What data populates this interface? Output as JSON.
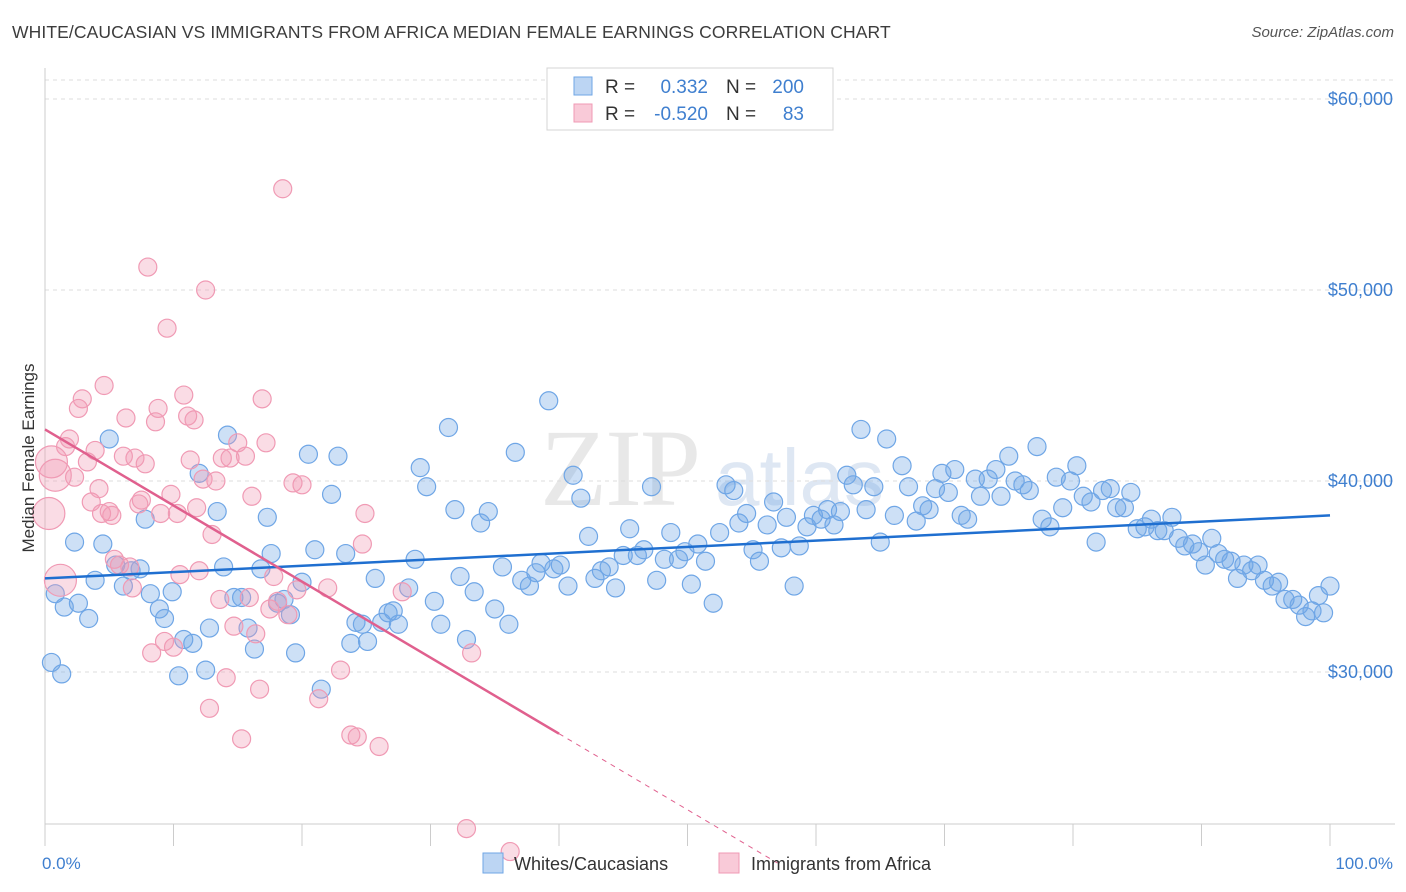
{
  "title": "WHITE/CAUCASIAN VS IMMIGRANTS FROM AFRICA MEDIAN FEMALE EARNINGS CORRELATION CHART",
  "source": "Source: ZipAtlas.com",
  "watermark": "ZIPatlas",
  "colors": {
    "blue": "#6fa6e6",
    "blue_line": "#1f6fd0",
    "pink": "#f09ab4",
    "pink_line": "#e0608e",
    "axis_text": "#3f7fcf",
    "grid": "#dddddd"
  },
  "legend": {
    "rows": [
      {
        "r_label": "R =",
        "r_value": "0.332",
        "n_label": "N =",
        "n_value": "200"
      },
      {
        "r_label": "R =",
        "r_value": "-0.520",
        "n_label": "N =",
        "n_value": "83"
      }
    ]
  },
  "chart_data": {
    "type": "scatter",
    "xlabel": "",
    "ylabel": "Median Female Earnings",
    "xlim": [
      0,
      100
    ],
    "ylim": [
      20000,
      62000
    ],
    "x_tick_labels": [
      "0.0%",
      "100.0%"
    ],
    "y_ticks": [
      30000,
      40000,
      50000,
      60000
    ],
    "y_tick_labels": [
      "$30,000",
      "$40,000",
      "$50,000",
      "$60,000"
    ],
    "grid": true,
    "legend_position": "top-center",
    "series": [
      {
        "name": "Whites/Caucasians",
        "color": "#6fa6e6",
        "trend": {
          "x0": 0,
          "y0": 34900,
          "x1": 100,
          "y1": 38200,
          "dashed_from": null
        },
        "points": [
          [
            0.5,
            30500
          ],
          [
            0.8,
            34100
          ],
          [
            1.3,
            29900
          ],
          [
            1.5,
            33400
          ],
          [
            2.3,
            36800
          ],
          [
            2.6,
            33600
          ],
          [
            3.4,
            32800
          ],
          [
            3.9,
            34800
          ],
          [
            4.5,
            36700
          ],
          [
            5.0,
            42200
          ],
          [
            5.5,
            35600
          ],
          [
            6.1,
            34500
          ],
          [
            6.7,
            35300
          ],
          [
            7.4,
            35400
          ],
          [
            7.8,
            38000
          ],
          [
            8.2,
            34100
          ],
          [
            8.9,
            33300
          ],
          [
            9.3,
            32800
          ],
          [
            9.9,
            34200
          ],
          [
            10.4,
            29800
          ],
          [
            10.8,
            31700
          ],
          [
            11.5,
            31500
          ],
          [
            12.0,
            40400
          ],
          [
            12.5,
            30100
          ],
          [
            12.8,
            32300
          ],
          [
            13.4,
            38400
          ],
          [
            13.9,
            35500
          ],
          [
            14.2,
            42400
          ],
          [
            14.7,
            33900
          ],
          [
            15.3,
            33900
          ],
          [
            15.8,
            32300
          ],
          [
            16.3,
            31200
          ],
          [
            16.8,
            35400
          ],
          [
            17.3,
            38100
          ],
          [
            17.6,
            36200
          ],
          [
            18.1,
            33600
          ],
          [
            18.6,
            33800
          ],
          [
            19.1,
            33000
          ],
          [
            19.5,
            31000
          ],
          [
            20.0,
            34700
          ],
          [
            20.5,
            41400
          ],
          [
            21.0,
            36400
          ],
          [
            21.5,
            29100
          ],
          [
            22.3,
            39300
          ],
          [
            22.8,
            41300
          ],
          [
            23.4,
            36200
          ],
          [
            23.8,
            31500
          ],
          [
            24.2,
            32600
          ],
          [
            24.7,
            32500
          ],
          [
            25.1,
            31600
          ],
          [
            25.7,
            34900
          ],
          [
            26.2,
            32600
          ],
          [
            26.7,
            33100
          ],
          [
            27.1,
            33200
          ],
          [
            27.5,
            32500
          ],
          [
            28.3,
            34400
          ],
          [
            28.8,
            35900
          ],
          [
            29.2,
            40700
          ],
          [
            29.7,
            39700
          ],
          [
            30.3,
            33700
          ],
          [
            30.8,
            32500
          ],
          [
            31.4,
            42800
          ],
          [
            31.9,
            38500
          ],
          [
            32.3,
            35000
          ],
          [
            32.8,
            31700
          ],
          [
            33.4,
            34200
          ],
          [
            33.9,
            37800
          ],
          [
            34.5,
            38400
          ],
          [
            35.0,
            33300
          ],
          [
            35.6,
            35500
          ],
          [
            36.1,
            32500
          ],
          [
            36.6,
            41500
          ],
          [
            37.1,
            34800
          ],
          [
            37.7,
            34500
          ],
          [
            38.2,
            35200
          ],
          [
            38.6,
            35700
          ],
          [
            39.2,
            44200
          ],
          [
            39.6,
            35400
          ],
          [
            40.1,
            35600
          ],
          [
            40.7,
            34500
          ],
          [
            41.1,
            40300
          ],
          [
            41.7,
            39100
          ],
          [
            42.3,
            37100
          ],
          [
            42.8,
            34900
          ],
          [
            43.3,
            35300
          ],
          [
            43.9,
            35500
          ],
          [
            44.4,
            34400
          ],
          [
            45.0,
            36100
          ],
          [
            45.5,
            37500
          ],
          [
            46.1,
            36100
          ],
          [
            46.6,
            36400
          ],
          [
            47.2,
            39700
          ],
          [
            47.6,
            34800
          ],
          [
            48.2,
            35900
          ],
          [
            48.7,
            37300
          ],
          [
            49.3,
            35900
          ],
          [
            49.8,
            36300
          ],
          [
            50.3,
            34600
          ],
          [
            50.8,
            36700
          ],
          [
            51.4,
            35800
          ],
          [
            52.0,
            33600
          ],
          [
            52.5,
            37300
          ],
          [
            53.0,
            39800
          ],
          [
            53.6,
            39500
          ],
          [
            54.0,
            37800
          ],
          [
            54.6,
            38300
          ],
          [
            55.1,
            36400
          ],
          [
            55.6,
            35800
          ],
          [
            56.2,
            37700
          ],
          [
            56.7,
            38900
          ],
          [
            57.3,
            36500
          ],
          [
            57.7,
            38100
          ],
          [
            58.3,
            34500
          ],
          [
            58.7,
            36600
          ],
          [
            59.3,
            37600
          ],
          [
            59.8,
            38200
          ],
          [
            60.4,
            38000
          ],
          [
            60.9,
            38500
          ],
          [
            61.4,
            37700
          ],
          [
            61.9,
            38400
          ],
          [
            62.4,
            40300
          ],
          [
            62.9,
            39800
          ],
          [
            63.5,
            42700
          ],
          [
            63.9,
            38500
          ],
          [
            64.5,
            39700
          ],
          [
            65.0,
            36800
          ],
          [
            65.5,
            42200
          ],
          [
            66.1,
            38200
          ],
          [
            66.7,
            40800
          ],
          [
            67.2,
            39700
          ],
          [
            67.8,
            37900
          ],
          [
            68.3,
            38700
          ],
          [
            68.8,
            38500
          ],
          [
            69.3,
            39600
          ],
          [
            69.8,
            40400
          ],
          [
            70.3,
            39400
          ],
          [
            70.8,
            40600
          ],
          [
            71.3,
            38200
          ],
          [
            71.8,
            38000
          ],
          [
            72.4,
            40100
          ],
          [
            72.8,
            39200
          ],
          [
            73.4,
            40100
          ],
          [
            74.0,
            40600
          ],
          [
            74.4,
            39200
          ],
          [
            75.0,
            41300
          ],
          [
            75.5,
            40000
          ],
          [
            76.1,
            39800
          ],
          [
            76.6,
            39500
          ],
          [
            77.2,
            41800
          ],
          [
            77.6,
            38000
          ],
          [
            78.2,
            37600
          ],
          [
            78.7,
            40200
          ],
          [
            79.2,
            38600
          ],
          [
            79.8,
            40000
          ],
          [
            80.3,
            40800
          ],
          [
            80.8,
            39200
          ],
          [
            81.4,
            38900
          ],
          [
            81.8,
            36800
          ],
          [
            82.3,
            39500
          ],
          [
            82.9,
            39600
          ],
          [
            83.4,
            38600
          ],
          [
            84.0,
            38600
          ],
          [
            84.5,
            39400
          ],
          [
            85.0,
            37500
          ],
          [
            85.6,
            37600
          ],
          [
            86.1,
            38000
          ],
          [
            86.6,
            37400
          ],
          [
            87.1,
            37400
          ],
          [
            87.7,
            38100
          ],
          [
            88.2,
            37000
          ],
          [
            88.7,
            36600
          ],
          [
            89.3,
            36700
          ],
          [
            89.8,
            36300
          ],
          [
            90.3,
            35600
          ],
          [
            90.8,
            37000
          ],
          [
            91.3,
            36200
          ],
          [
            91.8,
            35900
          ],
          [
            92.3,
            35800
          ],
          [
            92.8,
            34900
          ],
          [
            93.3,
            35600
          ],
          [
            93.9,
            35300
          ],
          [
            94.4,
            35600
          ],
          [
            94.9,
            34800
          ],
          [
            95.5,
            34500
          ],
          [
            96.0,
            34700
          ],
          [
            96.5,
            33800
          ],
          [
            97.1,
            33800
          ],
          [
            97.6,
            33500
          ],
          [
            98.1,
            32900
          ],
          [
            98.6,
            33200
          ],
          [
            99.1,
            34000
          ],
          [
            99.5,
            33100
          ],
          [
            100.0,
            34500
          ]
        ]
      },
      {
        "name": "Immigrants from Africa",
        "color": "#f09ab4",
        "trend": {
          "x0": 0,
          "y0": 42700,
          "x1": 57,
          "y1": 20000,
          "dashed_from": 40
        },
        "points": [
          [
            0.3,
            38300
          ],
          [
            0.5,
            41000
          ],
          [
            0.8,
            40300
          ],
          [
            1.2,
            34800
          ],
          [
            1.6,
            41800
          ],
          [
            1.9,
            42200
          ],
          [
            2.3,
            40200
          ],
          [
            2.6,
            43800
          ],
          [
            2.9,
            44300
          ],
          [
            3.3,
            41000
          ],
          [
            3.6,
            38900
          ],
          [
            3.9,
            41600
          ],
          [
            4.2,
            39600
          ],
          [
            4.4,
            38300
          ],
          [
            4.6,
            45000
          ],
          [
            5.0,
            38400
          ],
          [
            5.2,
            38200
          ],
          [
            5.4,
            35900
          ],
          [
            5.8,
            35600
          ],
          [
            6.1,
            41300
          ],
          [
            6.3,
            43300
          ],
          [
            6.6,
            35500
          ],
          [
            6.8,
            34400
          ],
          [
            7.0,
            41200
          ],
          [
            7.3,
            38800
          ],
          [
            7.5,
            39000
          ],
          [
            7.8,
            40900
          ],
          [
            8.0,
            51200
          ],
          [
            8.3,
            31000
          ],
          [
            8.6,
            43100
          ],
          [
            8.8,
            43800
          ],
          [
            9.0,
            38300
          ],
          [
            9.3,
            31600
          ],
          [
            9.5,
            48000
          ],
          [
            9.8,
            39300
          ],
          [
            10.0,
            31300
          ],
          [
            10.3,
            38300
          ],
          [
            10.5,
            35100
          ],
          [
            10.8,
            44500
          ],
          [
            11.1,
            43400
          ],
          [
            11.3,
            41100
          ],
          [
            11.6,
            43200
          ],
          [
            11.8,
            38600
          ],
          [
            12.0,
            35300
          ],
          [
            12.3,
            40100
          ],
          [
            12.5,
            50000
          ],
          [
            12.8,
            28100
          ],
          [
            13.0,
            37200
          ],
          [
            13.3,
            40000
          ],
          [
            13.6,
            33800
          ],
          [
            13.8,
            41200
          ],
          [
            14.1,
            29700
          ],
          [
            14.4,
            41200
          ],
          [
            14.7,
            32400
          ],
          [
            15.0,
            42000
          ],
          [
            15.3,
            26500
          ],
          [
            15.6,
            41300
          ],
          [
            15.9,
            33900
          ],
          [
            16.1,
            39200
          ],
          [
            16.4,
            32000
          ],
          [
            16.7,
            29100
          ],
          [
            16.9,
            44300
          ],
          [
            17.2,
            42000
          ],
          [
            17.5,
            33300
          ],
          [
            17.8,
            35000
          ],
          [
            18.1,
            33700
          ],
          [
            18.5,
            55300
          ],
          [
            18.9,
            33000
          ],
          [
            19.3,
            39900
          ],
          [
            19.6,
            34300
          ],
          [
            20.0,
            39800
          ],
          [
            21.3,
            28600
          ],
          [
            22.0,
            34400
          ],
          [
            23.0,
            30100
          ],
          [
            23.8,
            26700
          ],
          [
            24.3,
            26600
          ],
          [
            24.7,
            36700
          ],
          [
            24.9,
            38300
          ],
          [
            26.0,
            26100
          ],
          [
            27.8,
            34200
          ],
          [
            32.8,
            21800
          ],
          [
            33.2,
            31000
          ],
          [
            36.2,
            20600
          ]
        ]
      }
    ]
  },
  "bottom_legend": [
    "Whites/Caucasians",
    "Immigrants from Africa"
  ]
}
